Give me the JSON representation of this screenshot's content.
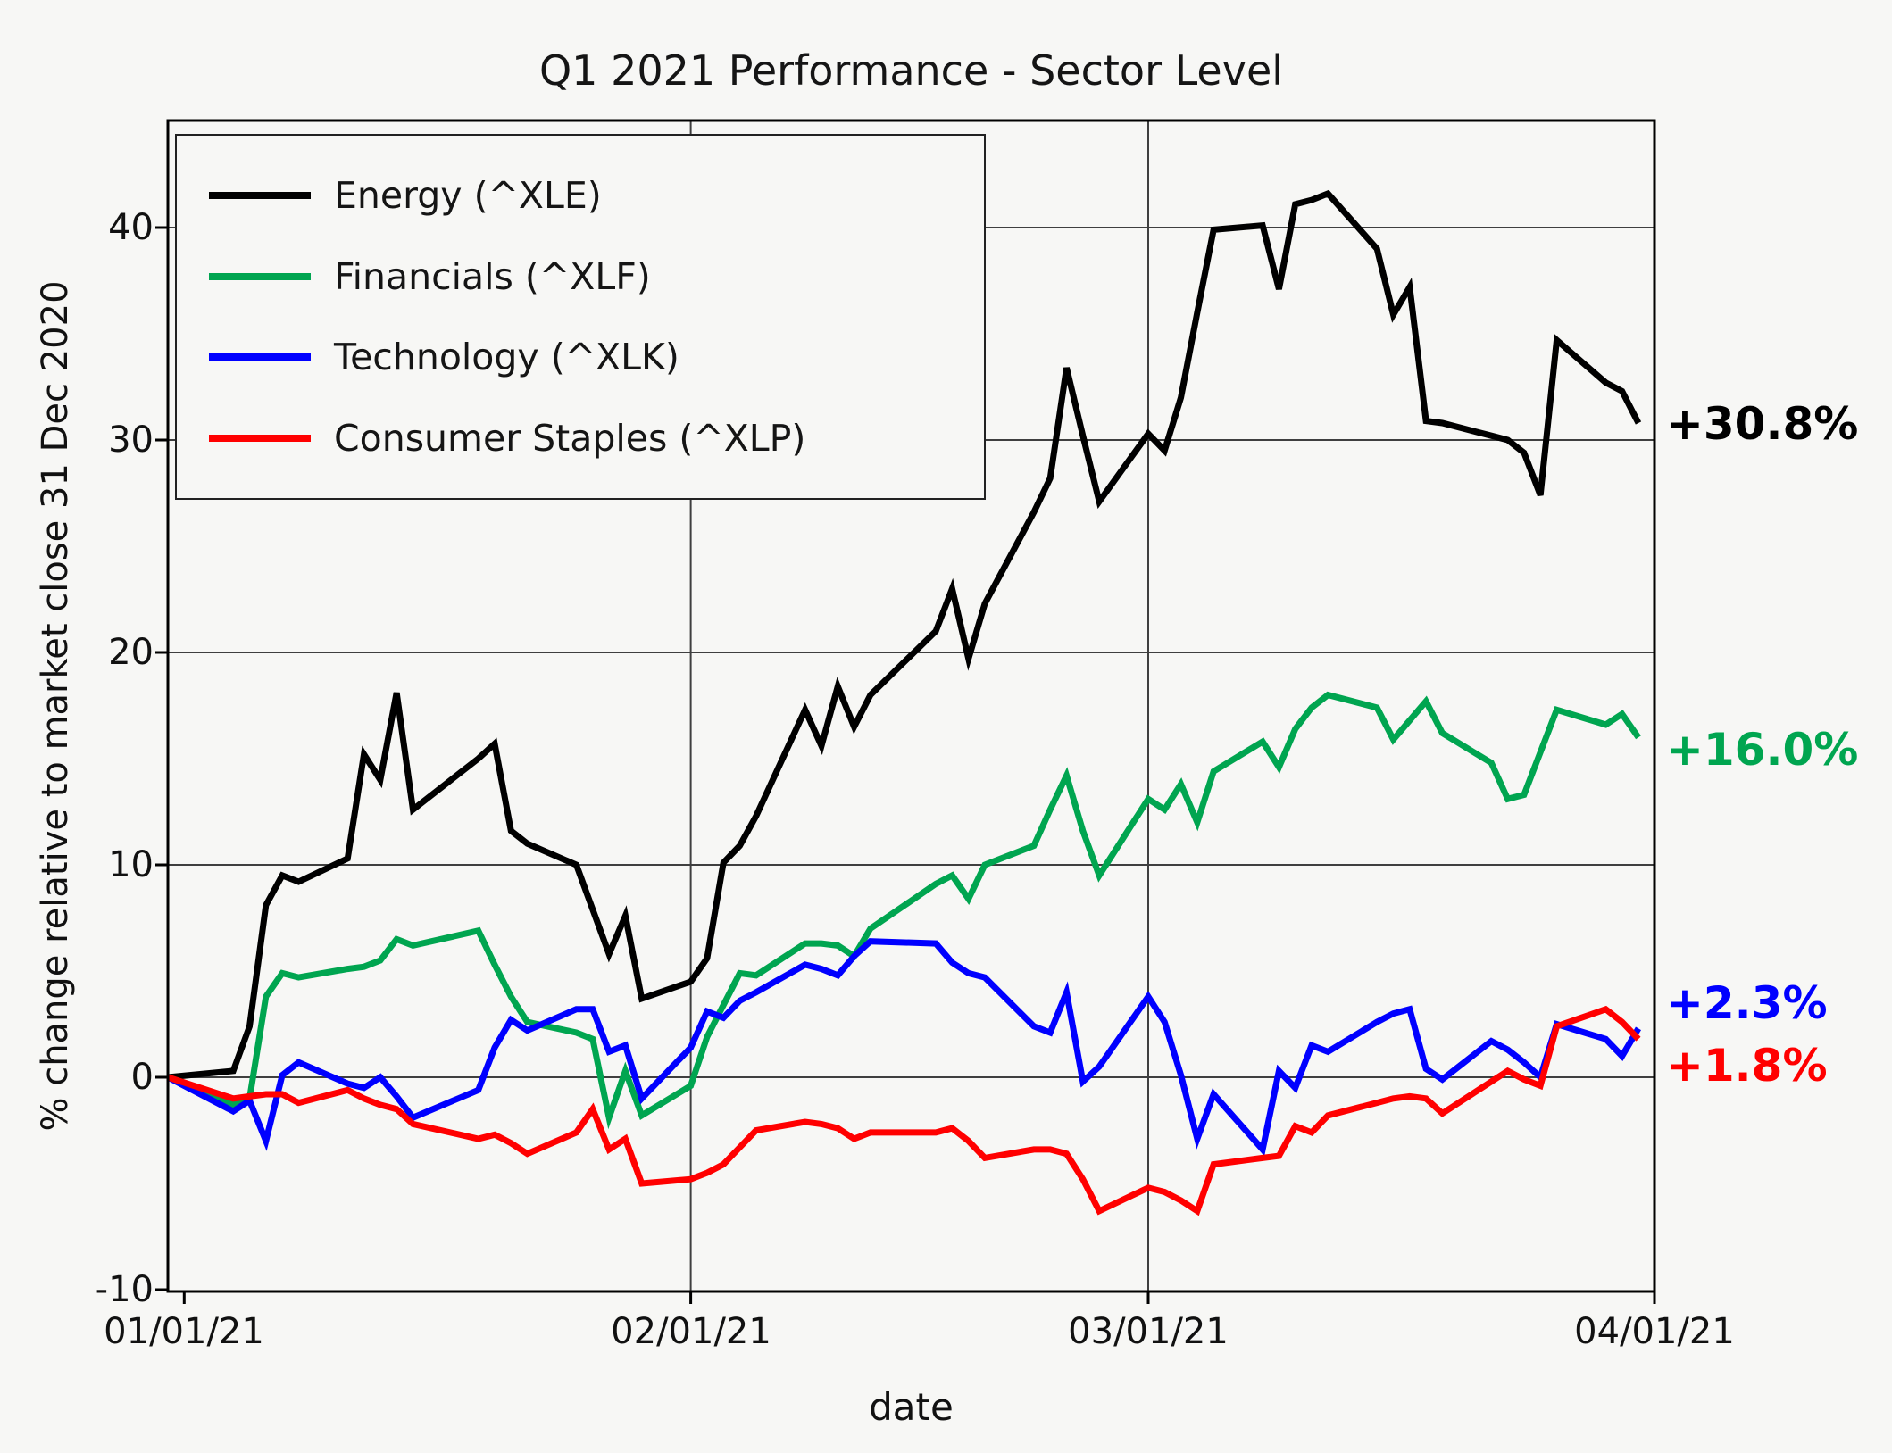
{
  "title": "Q1 2021 Performance - Sector Level",
  "x_axis": {
    "label": "date",
    "ticks": [
      "01/01/21",
      "02/01/21",
      "03/01/21",
      "04/01/21"
    ]
  },
  "y_axis": {
    "label": "% change relative to market close 31 Dec 2020",
    "ticks": [
      "40",
      "30",
      "20",
      "10",
      "0",
      "-10"
    ]
  },
  "legend": {
    "items": [
      {
        "label": "Energy (^XLE)",
        "color": "#000000"
      },
      {
        "label": "Financials (^XLF)",
        "color": "#00a550"
      },
      {
        "label": "Technology (^XLK)",
        "color": "#0000ff"
      },
      {
        "label": "Consumer Staples (^XLP)",
        "color": "#ff0000"
      }
    ]
  },
  "chart_data": {
    "type": "line",
    "title": "Q1 2021 Performance - Sector Level",
    "xlabel": "date",
    "ylabel": "% change relative to market close 31 Dec 2020",
    "ylim": [
      -10,
      45
    ],
    "x_range": [
      "12/31/20",
      "04/01/21"
    ],
    "grid": true,
    "legend_position": "upper left",
    "x_tick_labels": [
      "01/01/21",
      "02/01/21",
      "03/01/21",
      "04/01/21"
    ],
    "y_tick_values": [
      -10,
      0,
      10,
      20,
      30,
      40
    ],
    "dates": [
      "12/31",
      "01/04",
      "01/05",
      "01/06",
      "01/07",
      "01/08",
      "01/11",
      "01/12",
      "01/13",
      "01/14",
      "01/15",
      "01/19",
      "01/20",
      "01/21",
      "01/22",
      "01/25",
      "01/26",
      "01/27",
      "01/28",
      "01/29",
      "02/01",
      "02/02",
      "02/03",
      "02/04",
      "02/05",
      "02/08",
      "02/09",
      "02/10",
      "02/11",
      "02/12",
      "02/16",
      "02/17",
      "02/18",
      "02/19",
      "02/22",
      "02/23",
      "02/24",
      "02/25",
      "02/26",
      "03/01",
      "03/02",
      "03/03",
      "03/04",
      "03/05",
      "03/08",
      "03/09",
      "03/10",
      "03/11",
      "03/12",
      "03/15",
      "03/16",
      "03/17",
      "03/18",
      "03/19",
      "03/22",
      "03/23",
      "03/24",
      "03/25",
      "03/26",
      "03/29",
      "03/30",
      "03/31"
    ],
    "day_offsets": [
      0,
      4,
      5,
      6,
      7,
      8,
      11,
      12,
      13,
      14,
      15,
      19,
      20,
      21,
      22,
      25,
      26,
      27,
      28,
      29,
      32,
      33,
      34,
      35,
      36,
      39,
      40,
      41,
      42,
      43,
      47,
      48,
      49,
      50,
      53,
      54,
      55,
      56,
      57,
      60,
      61,
      62,
      63,
      64,
      67,
      68,
      69,
      70,
      71,
      74,
      75,
      76,
      77,
      78,
      81,
      82,
      83,
      84,
      85,
      88,
      89,
      90
    ],
    "series": [
      {
        "name": "Energy (^XLE)",
        "color": "#000000",
        "end_label": "+30.8%",
        "final_value": 30.8,
        "values": [
          0,
          0.3,
          2.4,
          8.1,
          9.5,
          9.2,
          10.3,
          15.2,
          14.0,
          18.1,
          12.6,
          15.0,
          15.7,
          11.6,
          11.0,
          10.0,
          7.9,
          5.8,
          7.6,
          3.7,
          4.5,
          5.6,
          10.1,
          10.9,
          12.3,
          17.3,
          15.6,
          18.4,
          16.5,
          18.0,
          21.0,
          23.0,
          19.7,
          22.3,
          26.6,
          28.2,
          33.4,
          30.2,
          27.1,
          30.3,
          29.5,
          32.0,
          36.0,
          39.9,
          40.1,
          37.1,
          41.1,
          41.3,
          41.6,
          39.0,
          35.9,
          37.2,
          30.9,
          30.8,
          30.2,
          30.0,
          29.4,
          27.4,
          34.7,
          32.7,
          32.3,
          30.8
        ]
      },
      {
        "name": "Financials (^XLF)",
        "color": "#00a550",
        "end_label": "+16.0%",
        "final_value": 16.0,
        "values": [
          0,
          -1.3,
          -1.0,
          3.8,
          4.9,
          4.7,
          5.1,
          5.2,
          5.5,
          6.5,
          6.2,
          6.9,
          5.3,
          3.8,
          2.6,
          2.1,
          1.8,
          -1.9,
          0.3,
          -1.8,
          -0.4,
          1.9,
          3.4,
          4.9,
          4.8,
          6.3,
          6.3,
          6.2,
          5.7,
          7.0,
          9.1,
          9.5,
          8.4,
          10.0,
          10.9,
          12.6,
          14.2,
          11.6,
          9.5,
          13.1,
          12.6,
          13.8,
          12.0,
          14.4,
          15.8,
          14.6,
          16.4,
          17.4,
          18.0,
          17.4,
          15.9,
          16.8,
          17.7,
          16.2,
          14.8,
          13.1,
          13.3,
          15.3,
          17.3,
          16.6,
          17.1,
          16.0
        ]
      },
      {
        "name": "Technology (^XLK)",
        "color": "#0000ff",
        "end_label": "+2.3%",
        "final_value": 2.3,
        "values": [
          0,
          -1.6,
          -1.1,
          -3.0,
          0.1,
          0.7,
          -0.3,
          -0.5,
          0.0,
          -0.9,
          -1.9,
          -0.6,
          1.4,
          2.7,
          2.2,
          3.2,
          3.2,
          1.2,
          1.5,
          -1.0,
          1.4,
          3.1,
          2.8,
          3.6,
          4.0,
          5.3,
          5.1,
          4.8,
          5.7,
          6.4,
          6.3,
          5.4,
          4.9,
          4.7,
          2.4,
          2.1,
          4.0,
          -0.2,
          0.5,
          3.8,
          2.6,
          0.1,
          -2.9,
          -0.8,
          -3.4,
          0.3,
          -0.5,
          1.5,
          1.2,
          2.6,
          3.0,
          3.2,
          0.4,
          -0.1,
          1.7,
          1.3,
          0.7,
          0.0,
          2.5,
          1.8,
          1.0,
          2.3
        ]
      },
      {
        "name": "Consumer Staples (^XLP)",
        "color": "#ff0000",
        "end_label": "+1.8%",
        "final_value": 1.8,
        "values": [
          0,
          -1.0,
          -0.9,
          -0.8,
          -0.8,
          -1.2,
          -0.6,
          -1.0,
          -1.3,
          -1.5,
          -2.2,
          -2.9,
          -2.7,
          -3.1,
          -3.6,
          -2.6,
          -1.5,
          -3.4,
          -2.9,
          -5.0,
          -4.8,
          -4.5,
          -4.1,
          -3.3,
          -2.5,
          -2.1,
          -2.2,
          -2.4,
          -2.9,
          -2.6,
          -2.6,
          -2.4,
          -3.0,
          -3.8,
          -3.4,
          -3.4,
          -3.6,
          -4.8,
          -6.3,
          -5.2,
          -5.4,
          -5.8,
          -6.3,
          -4.1,
          -3.8,
          -3.7,
          -2.3,
          -2.6,
          -1.8,
          -1.2,
          -1.0,
          -0.9,
          -1.0,
          -1.7,
          -0.2,
          0.3,
          -0.1,
          -0.4,
          2.4,
          3.2,
          2.6,
          1.8
        ]
      }
    ]
  }
}
